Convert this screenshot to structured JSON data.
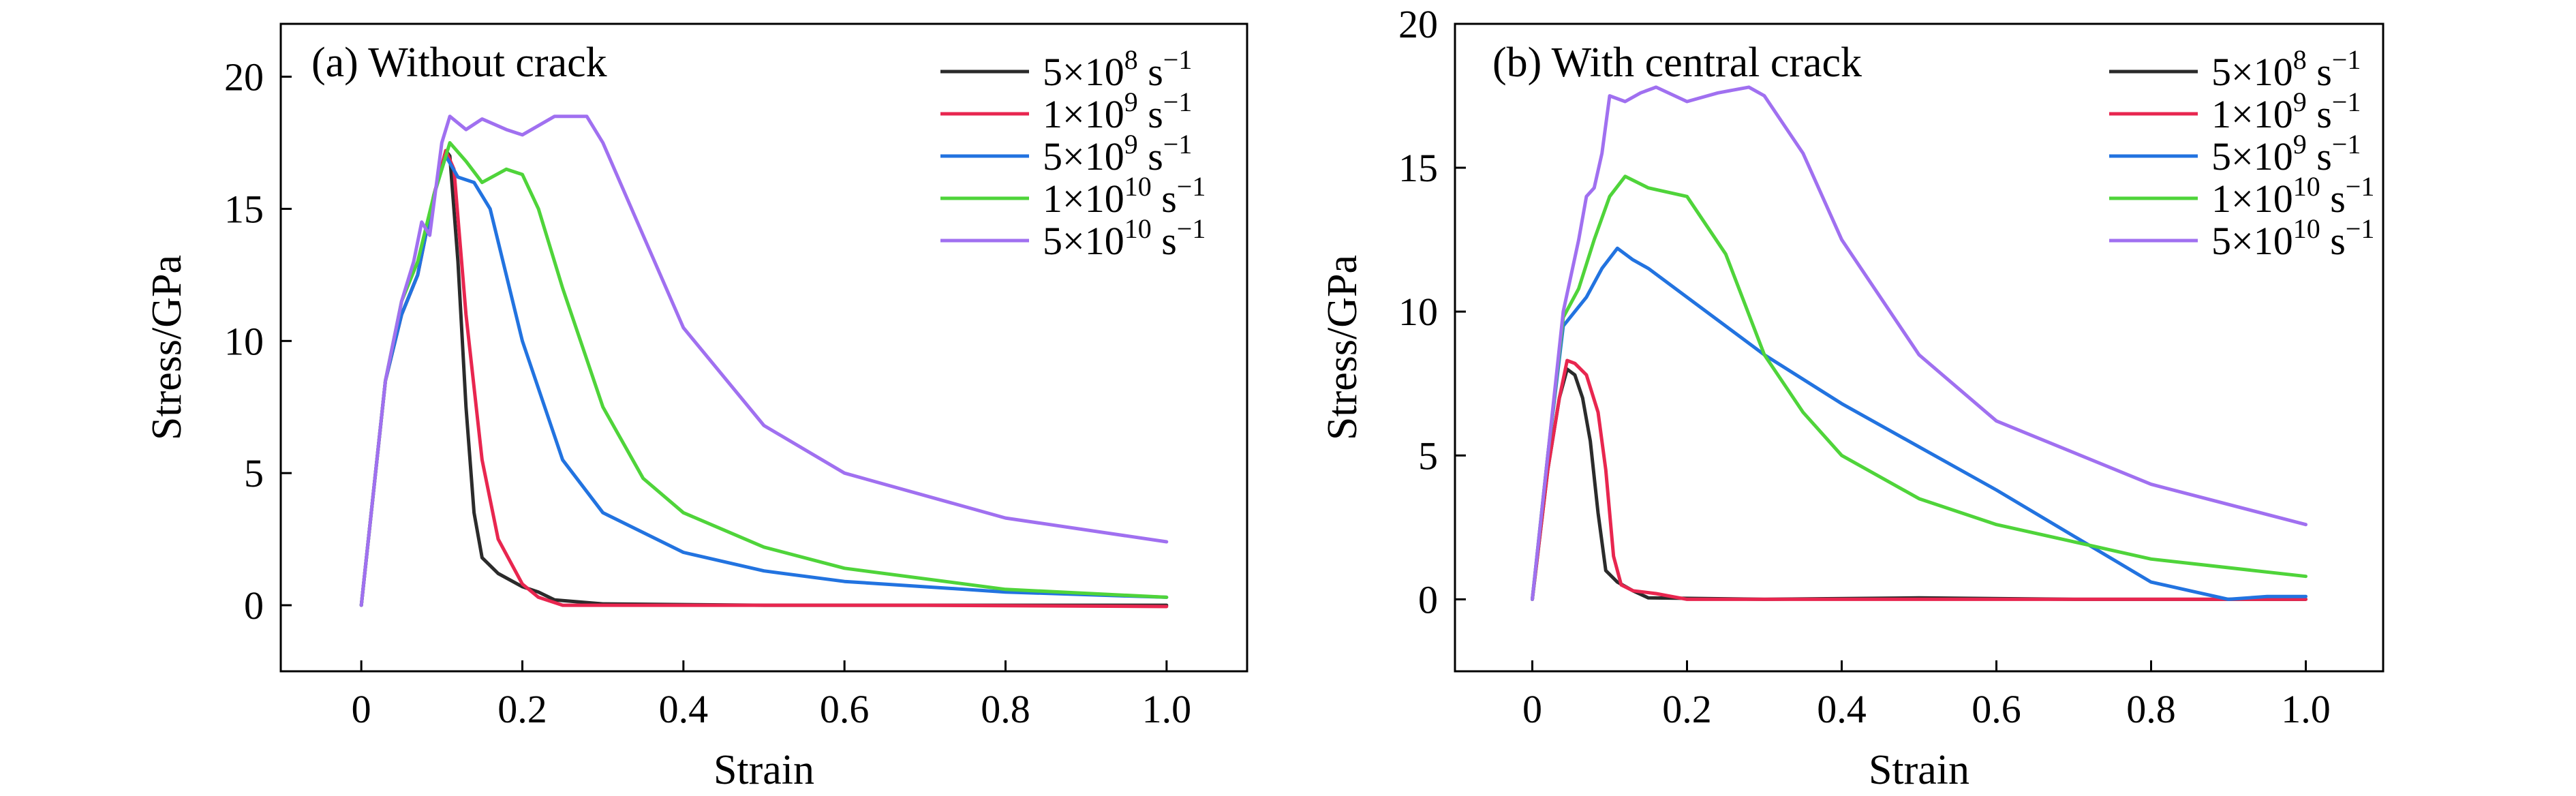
{
  "chart_data": [
    {
      "type": "line",
      "title": "(a) Without crack",
      "xlabel": "Strain",
      "ylabel": "Stress/GPa",
      "xlim": [
        -0.1,
        1.1
      ],
      "ylim": [
        -2.5,
        22
      ],
      "xticks": [
        "0",
        "0.2",
        "0.4",
        "0.6",
        "0.8",
        "1.0"
      ],
      "xtick_values": [
        0,
        0.2,
        0.4,
        0.6,
        0.8,
        1.0
      ],
      "yticks": [
        "0",
        "5",
        "10",
        "15",
        "20"
      ],
      "ytick_values": [
        0,
        5,
        10,
        15,
        20
      ],
      "grid": false,
      "legend_position": "top-right",
      "series": [
        {
          "label_base": "5×10",
          "label_exp": "8",
          "label_unit": " s",
          "label_unit_exp": "−1",
          "color": "#2b2b2b",
          "x": [
            0,
            0.03,
            0.05,
            0.07,
            0.09,
            0.105,
            0.11,
            0.12,
            0.13,
            0.14,
            0.15,
            0.17,
            0.2,
            0.22,
            0.24,
            0.3,
            0.5,
            0.7,
            1.0
          ],
          "y": [
            0,
            8.5,
            11.0,
            12.5,
            15.5,
            17.2,
            17.0,
            13.0,
            7.5,
            3.5,
            1.8,
            1.2,
            0.7,
            0.5,
            0.2,
            0.05,
            0.0,
            0.0,
            0.0
          ]
        },
        {
          "label_base": "1×10",
          "label_exp": "9",
          "label_unit": " s",
          "label_unit_exp": "−1",
          "color": "#e8264f",
          "x": [
            0,
            0.03,
            0.05,
            0.07,
            0.09,
            0.105,
            0.115,
            0.13,
            0.15,
            0.17,
            0.2,
            0.22,
            0.25,
            0.3,
            0.5,
            0.7,
            1.0
          ],
          "y": [
            0,
            8.5,
            11.0,
            12.5,
            15.5,
            17.2,
            16.5,
            11.0,
            5.5,
            2.5,
            0.8,
            0.3,
            0.0,
            0.0,
            0.0,
            0.0,
            -0.05
          ]
        },
        {
          "label_base": "5×10",
          "label_exp": "9",
          "label_unit": " s",
          "label_unit_exp": "−1",
          "color": "#2273e0",
          "x": [
            0,
            0.03,
            0.05,
            0.07,
            0.09,
            0.105,
            0.12,
            0.14,
            0.16,
            0.18,
            0.2,
            0.25,
            0.3,
            0.4,
            0.5,
            0.6,
            0.8,
            1.0
          ],
          "y": [
            0,
            8.5,
            11.0,
            12.5,
            15.5,
            17.0,
            16.2,
            16.0,
            15.0,
            12.5,
            10.0,
            5.5,
            3.5,
            2.0,
            1.3,
            0.9,
            0.5,
            0.3
          ]
        },
        {
          "label_base": "1×10",
          "label_exp": "10",
          "label_unit": " s",
          "label_unit_exp": "−1",
          "color": "#4fd43a",
          "x": [
            0,
            0.03,
            0.05,
            0.07,
            0.09,
            0.11,
            0.13,
            0.15,
            0.18,
            0.2,
            0.22,
            0.25,
            0.3,
            0.35,
            0.4,
            0.5,
            0.6,
            0.8,
            1.0
          ],
          "y": [
            0,
            8.5,
            11.5,
            13.0,
            15.5,
            17.5,
            16.8,
            16.0,
            16.5,
            16.3,
            15.0,
            12.0,
            7.5,
            4.8,
            3.5,
            2.2,
            1.4,
            0.6,
            0.3
          ]
        },
        {
          "label_base": "5×10",
          "label_exp": "10",
          "label_unit": " s",
          "label_unit_exp": "−1",
          "color": "#a070f0",
          "x": [
            0,
            0.03,
            0.05,
            0.065,
            0.075,
            0.085,
            0.1,
            0.11,
            0.13,
            0.15,
            0.18,
            0.2,
            0.24,
            0.28,
            0.3,
            0.35,
            0.4,
            0.5,
            0.6,
            0.8,
            1.0
          ],
          "y": [
            0,
            8.5,
            11.5,
            13.0,
            14.5,
            14.0,
            17.5,
            18.5,
            18.0,
            18.4,
            18.0,
            17.8,
            18.5,
            18.5,
            17.5,
            14.0,
            10.5,
            6.8,
            5.0,
            3.3,
            2.4
          ]
        }
      ]
    },
    {
      "type": "line",
      "title": "(b) With central crack",
      "xlabel": "Strain",
      "ylabel": "Stress/GPa",
      "xlim": [
        -0.1,
        1.1
      ],
      "ylim": [
        -2.5,
        20
      ],
      "xticks": [
        "0",
        "0.2",
        "0.4",
        "0.6",
        "0.8",
        "1.0"
      ],
      "xtick_values": [
        0,
        0.2,
        0.4,
        0.6,
        0.8,
        1.0
      ],
      "yticks": [
        "0",
        "5",
        "10",
        "15",
        "20"
      ],
      "ytick_values": [
        0,
        5,
        10,
        15,
        20
      ],
      "grid": false,
      "legend_position": "top-right",
      "series": [
        {
          "label_base": "5×10",
          "label_exp": "8",
          "label_unit": " s",
          "label_unit_exp": "−1",
          "color": "#2b2b2b",
          "x": [
            0,
            0.02,
            0.035,
            0.045,
            0.055,
            0.065,
            0.075,
            0.085,
            0.095,
            0.11,
            0.13,
            0.15,
            0.3,
            0.5,
            0.7,
            1.0
          ],
          "y": [
            0,
            4.5,
            7.0,
            8.0,
            7.8,
            7.0,
            5.5,
            3.0,
            1.0,
            0.6,
            0.3,
            0.05,
            0.0,
            0.05,
            0.0,
            0.0
          ]
        },
        {
          "label_base": "1×10",
          "label_exp": "9",
          "label_unit": " s",
          "label_unit_exp": "−1",
          "color": "#e8264f",
          "x": [
            0,
            0.02,
            0.035,
            0.045,
            0.055,
            0.07,
            0.085,
            0.095,
            0.105,
            0.115,
            0.13,
            0.16,
            0.2,
            0.4,
            0.6,
            0.8,
            1.0
          ],
          "y": [
            0,
            4.5,
            7.0,
            8.3,
            8.2,
            7.8,
            6.5,
            4.5,
            1.5,
            0.5,
            0.3,
            0.2,
            0.0,
            0.0,
            0.0,
            0.0,
            0.0
          ]
        },
        {
          "label_base": "5×10",
          "label_exp": "9",
          "label_unit": " s",
          "label_unit_exp": "−1",
          "color": "#2273e0",
          "x": [
            0,
            0.02,
            0.04,
            0.07,
            0.09,
            0.11,
            0.13,
            0.15,
            0.2,
            0.3,
            0.4,
            0.5,
            0.6,
            0.7,
            0.8,
            0.85,
            0.9,
            0.95,
            1.0
          ],
          "y": [
            0,
            5.0,
            9.5,
            10.5,
            11.5,
            12.2,
            11.8,
            11.5,
            10.5,
            8.5,
            6.8,
            5.3,
            3.8,
            2.2,
            0.6,
            0.3,
            0.0,
            0.1,
            0.1
          ]
        },
        {
          "label_base": "1×10",
          "label_exp": "10",
          "label_unit": " s",
          "label_unit_exp": "−1",
          "color": "#4fd43a",
          "x": [
            0,
            0.02,
            0.04,
            0.06,
            0.08,
            0.1,
            0.12,
            0.15,
            0.2,
            0.25,
            0.3,
            0.35,
            0.4,
            0.5,
            0.6,
            0.8,
            1.0
          ],
          "y": [
            0,
            5.0,
            9.8,
            10.8,
            12.5,
            14.0,
            14.7,
            14.3,
            14.0,
            12.0,
            8.5,
            6.5,
            5.0,
            3.5,
            2.6,
            1.4,
            0.8
          ]
        },
        {
          "label_base": "5×10",
          "label_exp": "10",
          "label_unit": " s",
          "label_unit_exp": "−1",
          "color": "#a070f0",
          "x": [
            0,
            0.02,
            0.04,
            0.06,
            0.07,
            0.08,
            0.09,
            0.1,
            0.12,
            0.14,
            0.16,
            0.2,
            0.24,
            0.28,
            0.3,
            0.35,
            0.4,
            0.5,
            0.6,
            0.8,
            1.0
          ],
          "y": [
            0,
            5.0,
            10.0,
            12.5,
            14.0,
            14.3,
            15.5,
            17.5,
            17.3,
            17.6,
            17.8,
            17.3,
            17.6,
            17.8,
            17.5,
            15.5,
            12.5,
            8.5,
            6.2,
            4.0,
            2.6
          ]
        }
      ]
    }
  ]
}
